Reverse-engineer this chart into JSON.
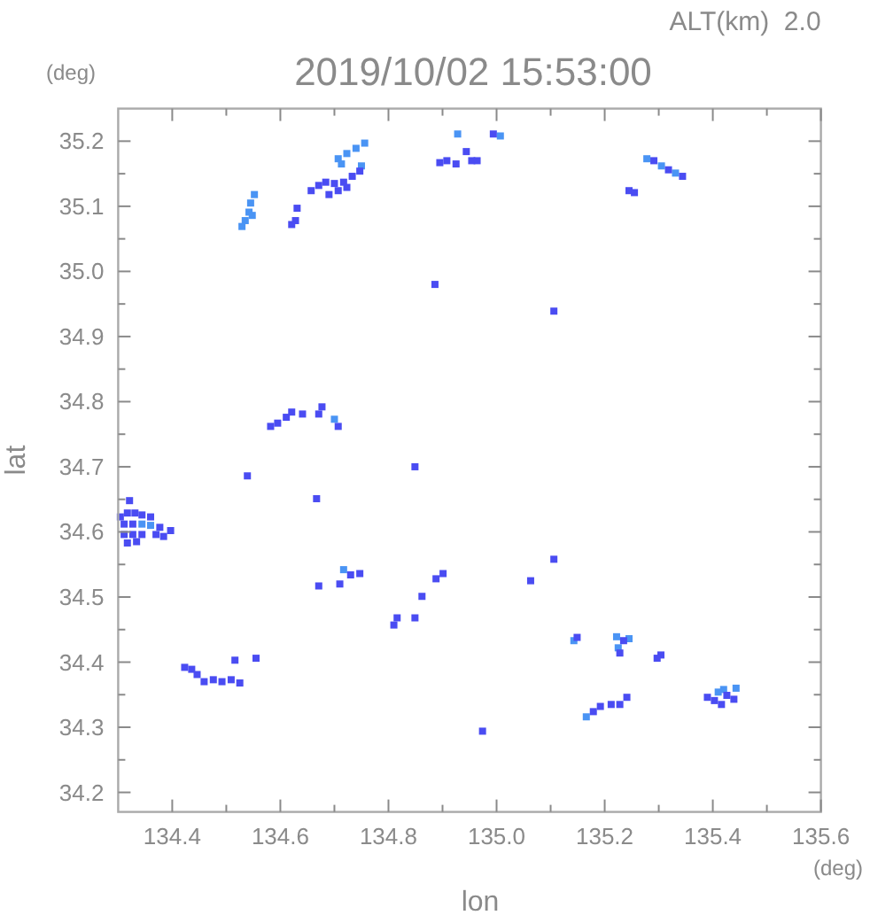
{
  "chart_data": {
    "type": "scatter",
    "title": "2019/10/02 15:53:00",
    "subtitle": "ALT(km)  2.0",
    "xlabel": "lon",
    "ylabel": "lat",
    "annotations": [
      "(deg)",
      "(deg)"
    ],
    "xlim": [
      134.3,
      135.6
    ],
    "xticks": [
      134.4,
      {
        "value": 134.5,
        "label": null
      },
      134.6,
      {
        "value": 134.7,
        "label": null
      },
      134.8,
      {
        "value": 134.9,
        "label": null
      },
      "135.0",
      {
        "value": 135.1,
        "label": null
      },
      135.2,
      {
        "value": 135.3,
        "label": null
      },
      135.4,
      {
        "value": 135.5,
        "label": null
      },
      135.6
    ],
    "ylim": [
      34.17,
      35.25
    ],
    "yticks": [
      34.2,
      {
        "value": 34.25,
        "label": null
      },
      34.3,
      {
        "value": 34.35,
        "label": null
      },
      34.4,
      {
        "value": 34.45,
        "label": null
      },
      34.5,
      {
        "value": 34.55,
        "label": null
      },
      34.6,
      {
        "value": 34.65,
        "label": null
      },
      34.7,
      {
        "value": 34.75,
        "label": null
      },
      34.8,
      {
        "value": 34.85,
        "label": null
      },
      34.9,
      {
        "value": 34.95,
        "label": null
      },
      {
        "value": 35.0,
        "label": "35.0"
      },
      {
        "value": 35.05,
        "label": null
      },
      35.1,
      {
        "value": 35.15,
        "label": null
      },
      35.2
    ],
    "grid": false,
    "marker": "square",
    "series": [
      {
        "color": "#4a94f4",
        "x": [
          134.552,
          134.545,
          134.542,
          134.548,
          134.535,
          134.529,
          134.756,
          134.74,
          134.723,
          134.707,
          134.713,
          134.75,
          134.928,
          135.007,
          135.278,
          135.305,
          135.331,
          134.717,
          135.222,
          135.245,
          135.225,
          135.42,
          135.443,
          135.41,
          135.143,
          134.344,
          134.36,
          135.166,
          134.7
        ],
        "values": [
          35.118,
          35.105,
          35.091,
          35.086,
          35.078,
          35.069,
          35.197,
          35.189,
          35.181,
          35.173,
          35.165,
          35.162,
          35.211,
          35.208,
          35.173,
          35.162,
          35.151,
          34.542,
          34.439,
          34.436,
          34.422,
          34.358,
          34.36,
          34.354,
          34.433,
          34.612,
          34.61,
          34.316,
          34.773
        ]
      },
      {
        "color": "#4a4cf2",
        "x": [
          134.631,
          134.628,
          134.621,
          134.657,
          134.671,
          134.684,
          134.7,
          134.717,
          134.733,
          134.747,
          134.69,
          134.707,
          134.723,
          134.994,
          134.895,
          134.908,
          134.925,
          134.944,
          134.954,
          134.964,
          135.291,
          135.318,
          135.344,
          135.245,
          135.255,
          134.886,
          135.106,
          134.582,
          134.595,
          134.611,
          134.621,
          134.641,
          134.671,
          134.677,
          134.707,
          134.539,
          134.849,
          134.667,
          134.304,
          134.317,
          134.331,
          134.344,
          134.36,
          134.311,
          134.327,
          134.377,
          134.397,
          134.311,
          134.327,
          134.344,
          134.37,
          134.317,
          134.334,
          134.384,
          134.321,
          134.73,
          134.747,
          134.71,
          134.671,
          134.862,
          134.888,
          134.901,
          134.81,
          134.849,
          134.816,
          134.423,
          134.436,
          134.446,
          134.459,
          134.476,
          134.492,
          134.509,
          134.525,
          134.516,
          134.555,
          134.974,
          135.106,
          135.063,
          135.149,
          135.235,
          135.228,
          135.304,
          135.297,
          135.179,
          135.192,
          135.212,
          135.228,
          135.241,
          135.39,
          135.403,
          135.416,
          135.426,
          135.439
        ],
        "values": [
          35.097,
          35.078,
          35.072,
          35.124,
          35.132,
          35.137,
          35.135,
          35.137,
          35.146,
          35.154,
          35.118,
          35.124,
          35.129,
          35.211,
          35.167,
          35.17,
          35.165,
          35.184,
          35.17,
          35.17,
          35.17,
          35.156,
          35.146,
          35.124,
          35.121,
          34.98,
          34.939,
          34.762,
          34.767,
          34.776,
          34.784,
          34.781,
          34.781,
          34.792,
          34.762,
          34.686,
          34.7,
          34.651,
          34.623,
          34.629,
          34.629,
          34.626,
          34.623,
          34.612,
          34.612,
          34.607,
          34.602,
          34.596,
          34.596,
          34.596,
          34.596,
          34.583,
          34.585,
          34.593,
          34.648,
          34.534,
          34.536,
          34.52,
          34.517,
          34.501,
          34.528,
          34.536,
          34.457,
          34.468,
          34.468,
          34.392,
          34.389,
          34.381,
          34.37,
          34.373,
          34.37,
          34.373,
          34.368,
          34.403,
          34.406,
          34.294,
          34.558,
          34.525,
          34.438,
          34.433,
          34.414,
          34.411,
          34.406,
          34.324,
          34.332,
          34.335,
          34.335,
          34.346,
          34.346,
          34.341,
          34.335,
          34.349,
          34.343
        ]
      }
    ]
  }
}
